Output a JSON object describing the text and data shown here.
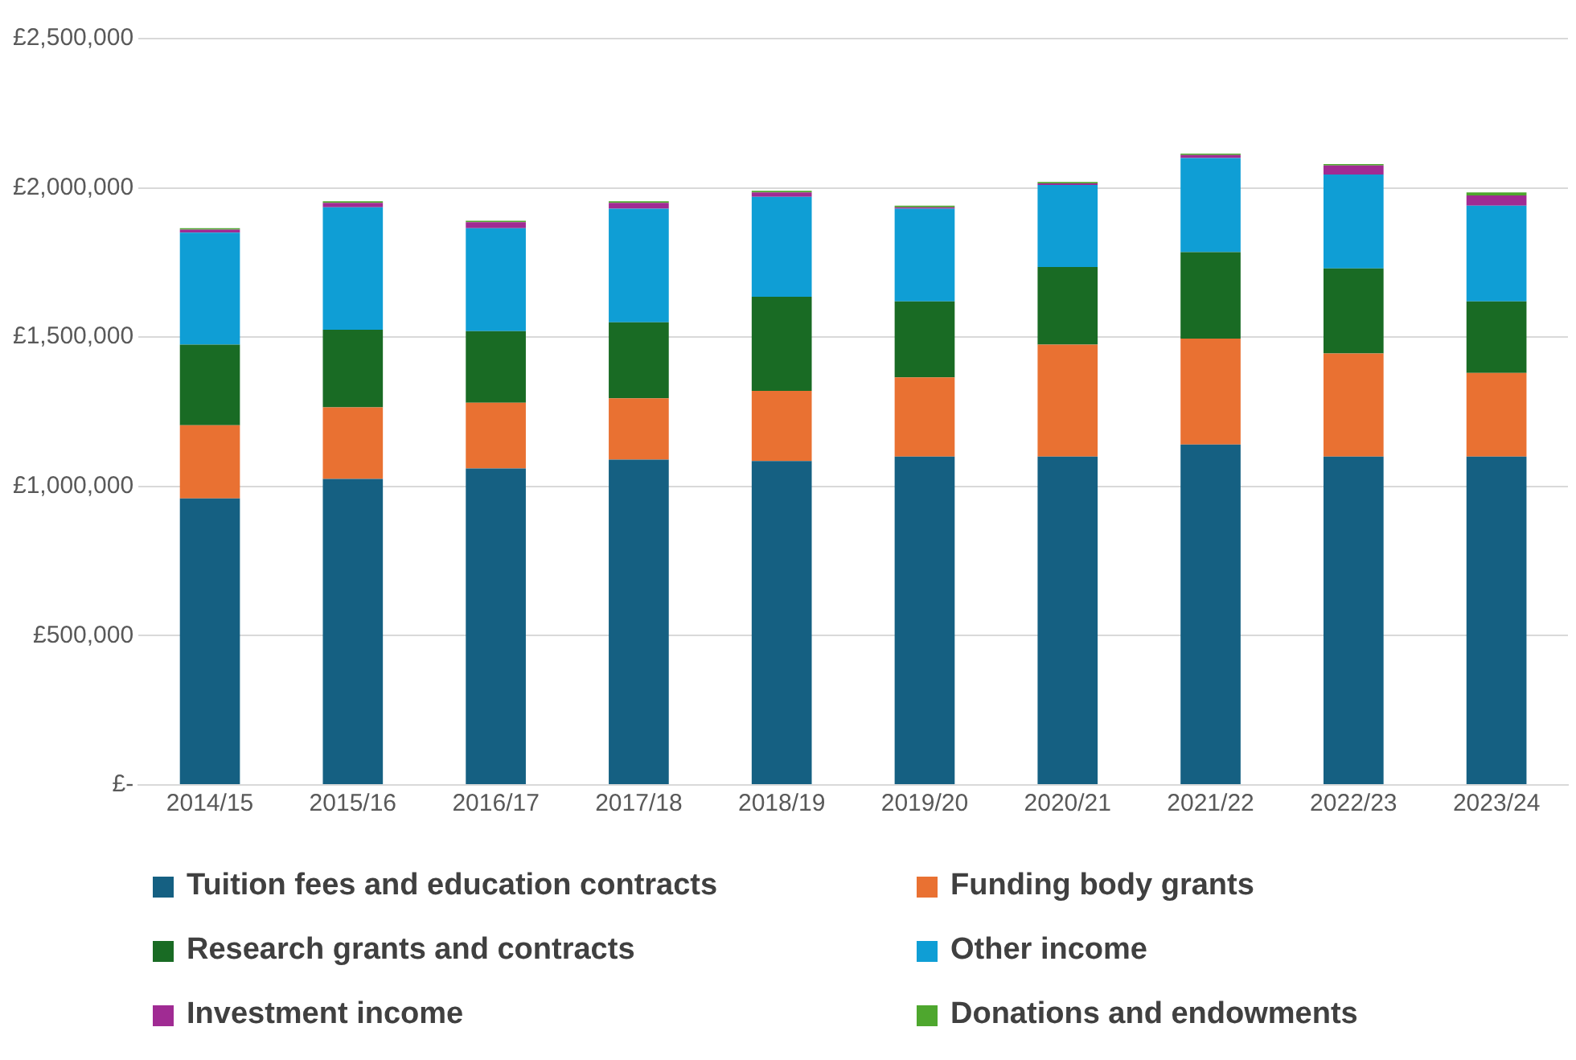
{
  "chart_data": {
    "type": "bar",
    "stacked": true,
    "categories": [
      "2014/15",
      "2015/16",
      "2016/17",
      "2017/18",
      "2018/19",
      "2019/20",
      "2020/21",
      "2021/22",
      "2022/23",
      "2023/24"
    ],
    "series": [
      {
        "name": "Tuition fees and education contracts",
        "color": "#156082",
        "values": [
          960000,
          1025000,
          1060000,
          1090000,
          1085000,
          1100000,
          1100000,
          1140000,
          1100000,
          1100000
        ]
      },
      {
        "name": "Funding body grants",
        "color": "#e97132",
        "values": [
          245000,
          240000,
          220000,
          205000,
          235000,
          265000,
          375000,
          355000,
          345000,
          280000
        ]
      },
      {
        "name": "Research grants and contracts",
        "color": "#196b24",
        "values": [
          270000,
          260000,
          240000,
          255000,
          315000,
          255000,
          260000,
          290000,
          285000,
          240000
        ]
      },
      {
        "name": "Other income",
        "color": "#0f9ed5",
        "values": [
          375000,
          410000,
          345000,
          380000,
          335000,
          310000,
          275000,
          315000,
          315000,
          320000
        ]
      },
      {
        "name": "Investment income",
        "color": "#a02b93",
        "values": [
          10000,
          15000,
          20000,
          20000,
          15000,
          5000,
          5000,
          10000,
          30000,
          35000
        ]
      },
      {
        "name": "Donations and endowments",
        "color": "#4ea72e",
        "values": [
          5000,
          5000,
          5000,
          5000,
          5000,
          5000,
          5000,
          5000,
          5000,
          10000
        ]
      }
    ],
    "ylim": [
      0,
      2500000
    ],
    "yticks": [
      {
        "value": 0,
        "label": "£-"
      },
      {
        "value": 500000,
        "label": "£500,000"
      },
      {
        "value": 1000000,
        "label": "£1,000,000"
      },
      {
        "value": 1500000,
        "label": "£1,500,000"
      },
      {
        "value": 2000000,
        "label": "£2,000,000"
      },
      {
        "value": 2500000,
        "label": "£2,500,000"
      }
    ],
    "grid": "y",
    "legend": "bottom"
  }
}
